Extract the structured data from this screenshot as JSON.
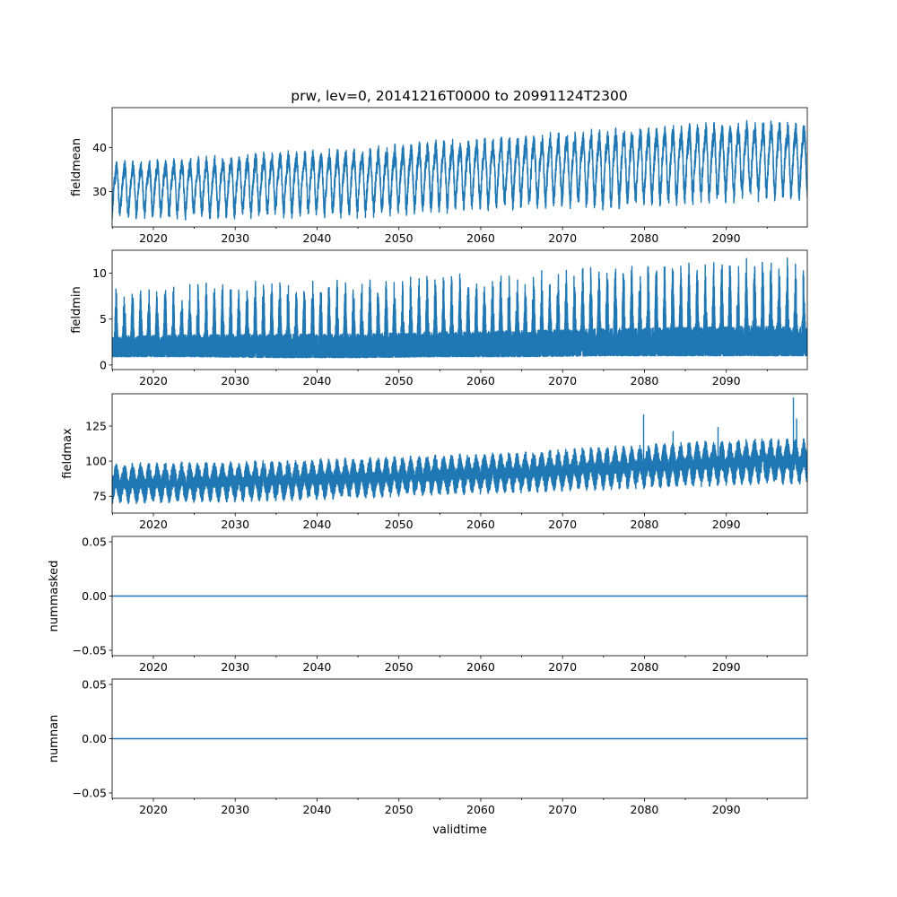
{
  "title": "prw, lev=0, 20141216T0000 to 20991124T2300",
  "chart_data": [
    {
      "type": "line",
      "ylabel": "fieldmean",
      "xlabel": "",
      "xlim": [
        2014.96,
        2099.9
      ],
      "xticks": [
        "2020",
        "2030",
        "2040",
        "2050",
        "2060",
        "2070",
        "2080",
        "2090"
      ],
      "ylim": [
        22,
        49
      ],
      "yticks": [
        {
          "v": 30,
          "label": "30"
        },
        {
          "v": 40,
          "label": "40"
        }
      ],
      "color": "#1f77b4",
      "kind": "seasonal",
      "envelope_years": [
        2015,
        2025,
        2035,
        2045,
        2055,
        2065,
        2075,
        2085,
        2095,
        2100
      ],
      "annual_peak": [
        37,
        38,
        39.5,
        40,
        42,
        43,
        44.5,
        45.5,
        46.5,
        46
      ],
      "annual_trough": [
        24.5,
        24.5,
        25,
        25,
        26,
        27,
        27,
        28,
        29,
        29
      ],
      "spikes": []
    },
    {
      "type": "line",
      "ylabel": "fieldmin",
      "xlabel": "",
      "xlim": [
        2014.96,
        2099.9
      ],
      "xticks": [
        "2020",
        "2030",
        "2040",
        "2050",
        "2060",
        "2070",
        "2080",
        "2090"
      ],
      "ylim": [
        -0.5,
        12.5
      ],
      "yticks": [
        {
          "v": 0,
          "label": "0"
        },
        {
          "v": 5,
          "label": "5"
        },
        {
          "v": 10,
          "label": "10"
        }
      ],
      "color": "#1f77b4",
      "kind": "dense",
      "envelope_years": [
        2015,
        2025,
        2035,
        2045,
        2055,
        2065,
        2075,
        2085,
        2095,
        2100
      ],
      "annual_peak": [
        8,
        8.5,
        9,
        9,
        9.5,
        10,
        10.5,
        11,
        11.5,
        11
      ],
      "annual_trough": [
        0.5,
        0.5,
        0.4,
        0.4,
        0.5,
        0.5,
        0.6,
        0.6,
        0.6,
        0.6
      ],
      "spikes": []
    },
    {
      "type": "line",
      "ylabel": "fieldmax",
      "xlabel": "",
      "xlim": [
        2014.96,
        2099.9
      ],
      "xticks": [
        "2020",
        "2030",
        "2040",
        "2050",
        "2060",
        "2070",
        "2080",
        "2090"
      ],
      "ylim": [
        63,
        148
      ],
      "yticks": [
        {
          "v": 75,
          "label": "75"
        },
        {
          "v": 100,
          "label": "100"
        },
        {
          "v": 125,
          "label": "125"
        }
      ],
      "color": "#1f77b4",
      "kind": "noisy",
      "envelope_years": [
        2015,
        2025,
        2035,
        2045,
        2055,
        2065,
        2075,
        2085,
        2095,
        2100
      ],
      "annual_peak": [
        98,
        99,
        100,
        102,
        104,
        106,
        110,
        113,
        116,
        115
      ],
      "annual_trough": [
        70,
        71,
        72,
        74,
        76,
        78,
        80,
        82,
        84,
        84
      ],
      "spikes": [
        [
          2079.9,
          133
        ],
        [
          2083.5,
          121
        ],
        [
          2089,
          124
        ],
        [
          2098.2,
          145
        ],
        [
          2098.6,
          130
        ]
      ]
    },
    {
      "type": "line",
      "ylabel": "nummasked",
      "xlabel": "",
      "xlim": [
        2014.96,
        2099.9
      ],
      "xticks": [
        "2020",
        "2030",
        "2040",
        "2050",
        "2060",
        "2070",
        "2080",
        "2090"
      ],
      "ylim": [
        -0.055,
        0.055
      ],
      "yticks": [
        {
          "v": -0.05,
          "label": "−0.05"
        },
        {
          "v": 0,
          "label": "0.00"
        },
        {
          "v": 0.05,
          "label": "0.05"
        }
      ],
      "color": "#1f77b4",
      "kind": "constant",
      "constant_value": 0
    },
    {
      "type": "line",
      "ylabel": "numnan",
      "xlabel": "validtime",
      "xlim": [
        2014.96,
        2099.9
      ],
      "xticks": [
        "2020",
        "2030",
        "2040",
        "2050",
        "2060",
        "2070",
        "2080",
        "2090"
      ],
      "ylim": [
        -0.055,
        0.055
      ],
      "yticks": [
        {
          "v": -0.05,
          "label": "−0.05"
        },
        {
          "v": 0,
          "label": "0.00"
        },
        {
          "v": 0.05,
          "label": "0.05"
        }
      ],
      "color": "#1f77b4",
      "kind": "constant",
      "constant_value": 0
    }
  ]
}
